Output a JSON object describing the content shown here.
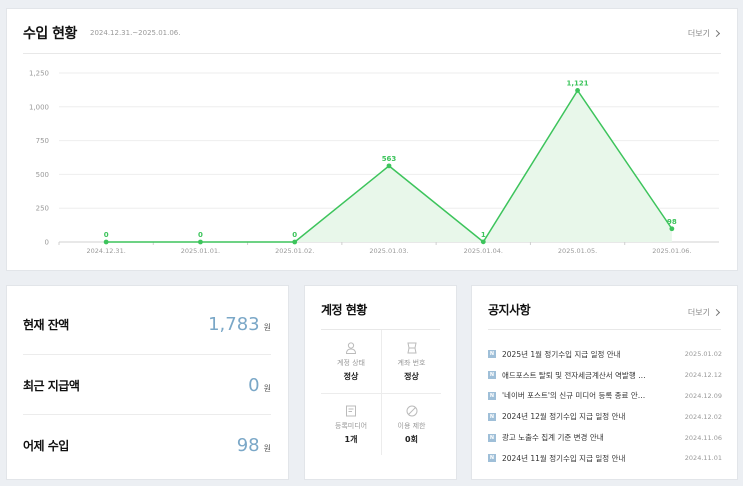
{
  "income": {
    "title": "수입 현황",
    "period": "2024.12.31.~2025.01.06.",
    "more_label": "더보기"
  },
  "chart_data": {
    "type": "area",
    "x": [
      "2024.12.31.",
      "2025.01.01.",
      "2025.01.02.",
      "2025.01.03.",
      "2025.01.04.",
      "2025.01.05.",
      "2025.01.06."
    ],
    "values": [
      0,
      0,
      0,
      563,
      1,
      1121,
      98
    ],
    "data_labels": [
      "0",
      "0",
      "0",
      "563",
      "1",
      "1,121",
      "98"
    ],
    "yticks": [
      0,
      250,
      500,
      750,
      1000,
      1250
    ],
    "ytick_labels": [
      "0",
      "250",
      "500",
      "750",
      "1,000",
      "1,250"
    ],
    "ylim": [
      0,
      1250
    ],
    "grid": true,
    "line_color": "#3dc45c",
    "fill_color": "#e8f7ea"
  },
  "balance": {
    "rows": [
      {
        "label": "현재 잔액",
        "value": "1,783",
        "unit": "원"
      },
      {
        "label": "최근 지급액",
        "value": "0",
        "unit": "원"
      },
      {
        "label": "어제 수입",
        "value": "98",
        "unit": "원"
      }
    ]
  },
  "account": {
    "title": "계정 현황",
    "cells": [
      {
        "icon": "person-icon",
        "label": "계정 상태",
        "value": "정상"
      },
      {
        "icon": "card-icon",
        "label": "계좌 번호",
        "value": "정상"
      },
      {
        "icon": "document-icon",
        "label": "등록미디어",
        "value": "1개"
      },
      {
        "icon": "ban-icon",
        "label": "이용 제한",
        "value": "0회"
      }
    ]
  },
  "notice": {
    "title": "공지사항",
    "more_label": "더보기",
    "badge": "N",
    "items": [
      {
        "title": "2025년 1월 정기수입 지급 일정 안내",
        "date": "2025.01.02"
      },
      {
        "title": "애드포스트 탈퇴 및 전자세금계산서 역발행 …",
        "date": "2024.12.12"
      },
      {
        "title": "'네이버 포스트'의 신규 미디어 등록 종료 안…",
        "date": "2024.12.09"
      },
      {
        "title": "2024년 12월 정기수입 지급 일정 안내",
        "date": "2024.12.02"
      },
      {
        "title": "광고 노출수 집계 기준 변경 안내",
        "date": "2024.11.06"
      },
      {
        "title": "2024년 11월 정기수입 지급 일정 안내",
        "date": "2024.11.01"
      }
    ]
  }
}
